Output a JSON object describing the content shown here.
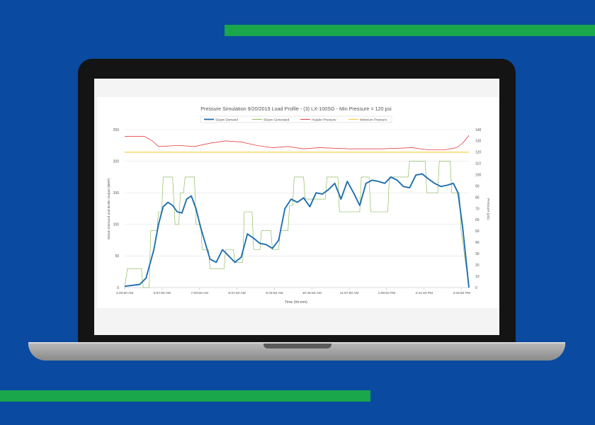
{
  "colors": {
    "background": "#0a4aa0",
    "stripe": "#1aa64a",
    "steam_demand": "#1f6fb0",
    "steam_generated": "#7fb24a",
    "header_pressure": "#e2262a",
    "minimum_pressure": "#f5c518"
  },
  "chart_data": {
    "type": "line",
    "title": "Pressure Simulation 9/20/2019 Load Profile - (3) LX-100SG - Min Pressure = 120 psi",
    "xlabel": "Time (hh:mm)",
    "ylabel_left": "Steam Demand and Boiler Output (BHP)",
    "ylabel_right": "Pressure (psi)",
    "y_left_range": [
      0,
      250
    ],
    "y_left_ticks": [
      "0",
      "50",
      "100",
      "150",
      "200",
      "250"
    ],
    "y_right_range": [
      0,
      140
    ],
    "y_right_ticks": [
      "0",
      "10",
      "20",
      "30",
      "40",
      "50",
      "60",
      "70",
      "80",
      "90",
      "100",
      "110",
      "120",
      "130",
      "140"
    ],
    "x_range_hours": [
      4.764,
      15.8
    ],
    "x_ticks": [
      {
        "label": "4:45:50 AM",
        "t": 4.764
      },
      {
        "label": "5:57:50 AM",
        "t": 5.964
      },
      {
        "label": "7:09:50 AM",
        "t": 7.164
      },
      {
        "label": "8:21:50 AM",
        "t": 8.364
      },
      {
        "label": "9:33:50 AM",
        "t": 9.564
      },
      {
        "label": "10:45:50 AM",
        "t": 10.764
      },
      {
        "label": "11:57:50 AM",
        "t": 11.964
      },
      {
        "label": "1:09:50 PM",
        "t": 13.164
      },
      {
        "label": "2:21:50 PM",
        "t": 14.364
      },
      {
        "label": "3:33:50 PM",
        "t": 15.564
      }
    ],
    "grid": true,
    "legend_position": "top",
    "series": [
      {
        "name": "Steam Demand",
        "axis": "left",
        "x": [
          4.764,
          5.25,
          5.45,
          5.7,
          5.85,
          6.0,
          6.15,
          6.3,
          6.45,
          6.6,
          6.75,
          6.9,
          7.05,
          7.2,
          7.35,
          7.5,
          7.7,
          7.9,
          8.1,
          8.3,
          8.5,
          8.7,
          8.9,
          9.1,
          9.3,
          9.5,
          9.7,
          9.9,
          10.1,
          10.3,
          10.5,
          10.7,
          10.9,
          11.1,
          11.3,
          11.5,
          11.7,
          11.9,
          12.1,
          12.3,
          12.5,
          12.7,
          12.9,
          13.1,
          13.3,
          13.5,
          13.7,
          13.9,
          14.1,
          14.3,
          14.5,
          14.7,
          14.9,
          15.1,
          15.3,
          15.45,
          15.6,
          15.8
        ],
        "y": [
          2,
          5,
          15,
          60,
          100,
          128,
          135,
          130,
          120,
          118,
          140,
          145,
          125,
          95,
          70,
          45,
          40,
          60,
          50,
          40,
          48,
          85,
          78,
          70,
          68,
          62,
          75,
          125,
          140,
          135,
          142,
          128,
          150,
          148,
          155,
          165,
          140,
          168,
          150,
          130,
          165,
          170,
          168,
          165,
          175,
          170,
          160,
          158,
          178,
          180,
          172,
          165,
          160,
          162,
          165,
          150,
          95,
          0
        ]
      },
      {
        "name": "Steam Generated",
        "axis": "left",
        "x": [
          4.764,
          4.85,
          5.3,
          5.36,
          5.55,
          5.6,
          5.8,
          5.85,
          5.95,
          6.0,
          6.3,
          6.38,
          6.5,
          6.55,
          6.65,
          6.7,
          7.0,
          7.05,
          7.2,
          7.25,
          7.45,
          7.5,
          7.95,
          8.0,
          8.25,
          8.3,
          8.55,
          8.6,
          8.85,
          8.9,
          9.1,
          9.15,
          9.45,
          9.5,
          9.7,
          9.75,
          10.0,
          10.05,
          10.15,
          10.2,
          10.5,
          10.55,
          11.2,
          11.25,
          11.6,
          11.65,
          12.3,
          12.35,
          12.6,
          12.65,
          13.2,
          13.25,
          13.85,
          13.9,
          14.4,
          14.45,
          14.8,
          14.85,
          15.2,
          15.25,
          15.5,
          15.55,
          15.8
        ],
        "y": [
          0,
          30,
          30,
          0,
          0,
          90,
          90,
          120,
          120,
          175,
          175,
          100,
          100,
          150,
          150,
          175,
          175,
          100,
          100,
          60,
          60,
          30,
          30,
          60,
          60,
          40,
          40,
          120,
          120,
          60,
          60,
          90,
          90,
          60,
          60,
          90,
          90,
          130,
          130,
          175,
          175,
          140,
          140,
          175,
          175,
          120,
          120,
          175,
          175,
          120,
          120,
          175,
          175,
          200,
          200,
          150,
          150,
          200,
          200,
          150,
          150,
          90,
          0
        ]
      },
      {
        "name": "Header Pressure",
        "axis": "right",
        "x": [
          4.764,
          5.4,
          5.65,
          5.85,
          6.5,
          7.0,
          7.5,
          8.0,
          8.5,
          9.0,
          9.5,
          10.0,
          10.5,
          11.0,
          12.0,
          13.0,
          14.0,
          14.5,
          15.0,
          15.4,
          15.6,
          15.8
        ],
        "y": [
          134,
          134,
          130,
          125,
          126,
          125,
          128,
          130,
          129,
          126,
          124,
          125,
          123,
          124,
          123,
          123,
          124,
          122,
          122,
          124,
          128,
          135
        ]
      },
      {
        "name": "Minimum Pressure",
        "axis": "right",
        "x": [
          4.764,
          15.8
        ],
        "y": [
          120,
          120
        ]
      }
    ]
  }
}
